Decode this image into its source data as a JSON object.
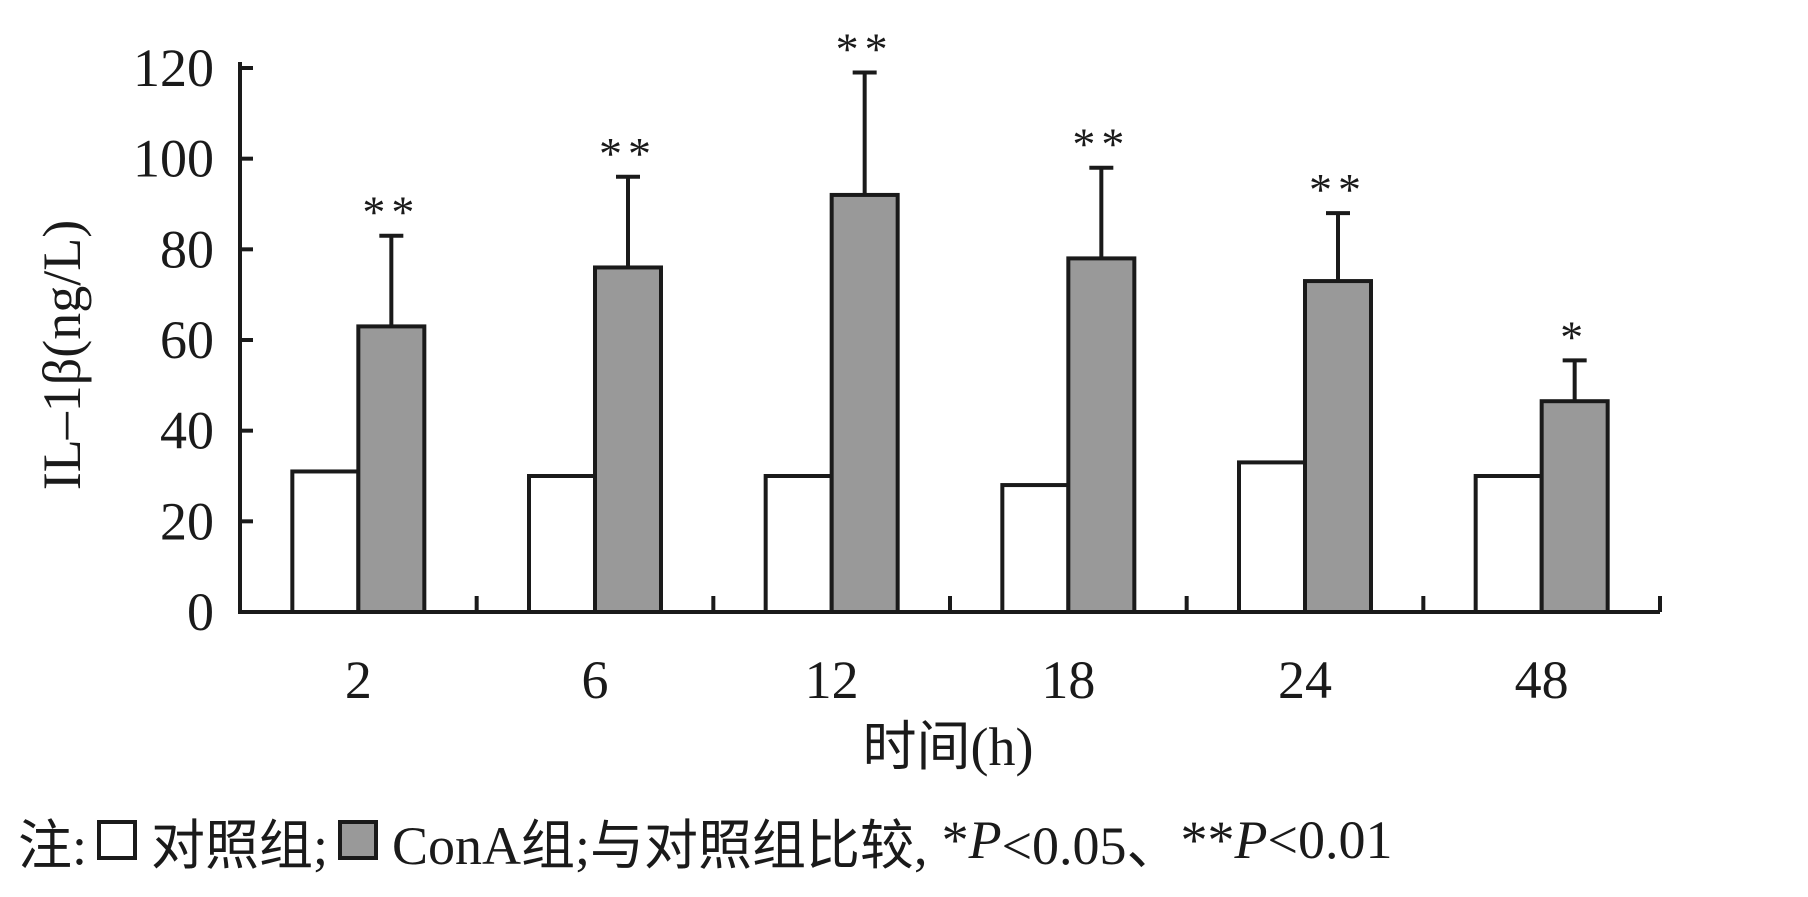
{
  "chart_data": {
    "type": "bar",
    "categories": [
      "2",
      "6",
      "12",
      "18",
      "24",
      "48"
    ],
    "series": [
      {
        "name": "对照组",
        "values": [
          31,
          30,
          30,
          28,
          33,
          30
        ],
        "color": "#ffffff"
      },
      {
        "name": "ConA组",
        "values": [
          63,
          76,
          92,
          78,
          73,
          46.5
        ],
        "errors": [
          20,
          20,
          27,
          20,
          15,
          9
        ],
        "significance": [
          "**",
          "**",
          "**",
          "**",
          "**",
          "*"
        ],
        "color": "#999999"
      }
    ],
    "xlabel": "时间(h)",
    "ylabel": "IL–1β(ng/L)",
    "ylim": [
      0,
      120
    ],
    "yticks": [
      "0",
      "20",
      "40",
      "60",
      "80",
      "100",
      "120"
    ],
    "grid": false,
    "legend": "below"
  },
  "note": {
    "prefix": "注:",
    "control_label": "对照组;",
    "cona_label": "ConA组;与对照组比较,",
    "sig1_star": "*",
    "sig1_p": "P",
    "sig1_rest": "<0.05、",
    "sig2_star": "**",
    "sig2_p": "P",
    "sig2_rest": "<0.01"
  }
}
